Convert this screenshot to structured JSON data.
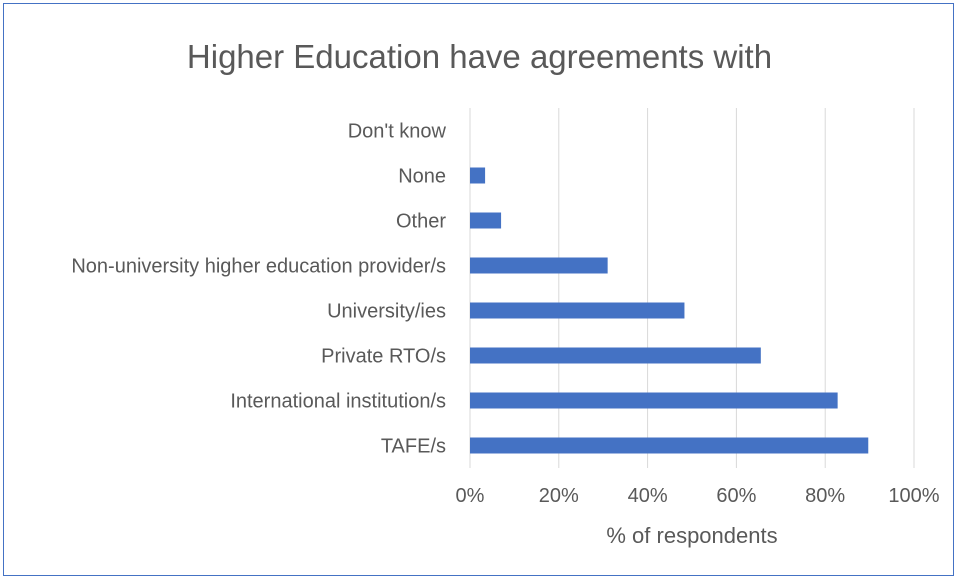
{
  "chart_data": {
    "type": "bar",
    "orientation": "horizontal",
    "title": "Higher Education have agreements with",
    "xlabel": "% of respondents",
    "ylabel": "",
    "categories": [
      "Don't know",
      "None",
      "Other",
      "Non-university higher education provider/s",
      "University/ies",
      "Private RTO/s",
      "International institution/s",
      "TAFE/s"
    ],
    "values": [
      0,
      3.4,
      7,
      31,
      48.3,
      65.5,
      82.8,
      89.7
    ],
    "xlim": [
      0,
      100
    ],
    "xticks": [
      0,
      20,
      40,
      60,
      80,
      100
    ],
    "xtick_labels": [
      "0%",
      "20%",
      "40%",
      "60%",
      "80%",
      "100%"
    ],
    "grid": "vertical",
    "legend": "none",
    "bar_color": "#4472c4",
    "grid_color": "#d9d9d9"
  }
}
